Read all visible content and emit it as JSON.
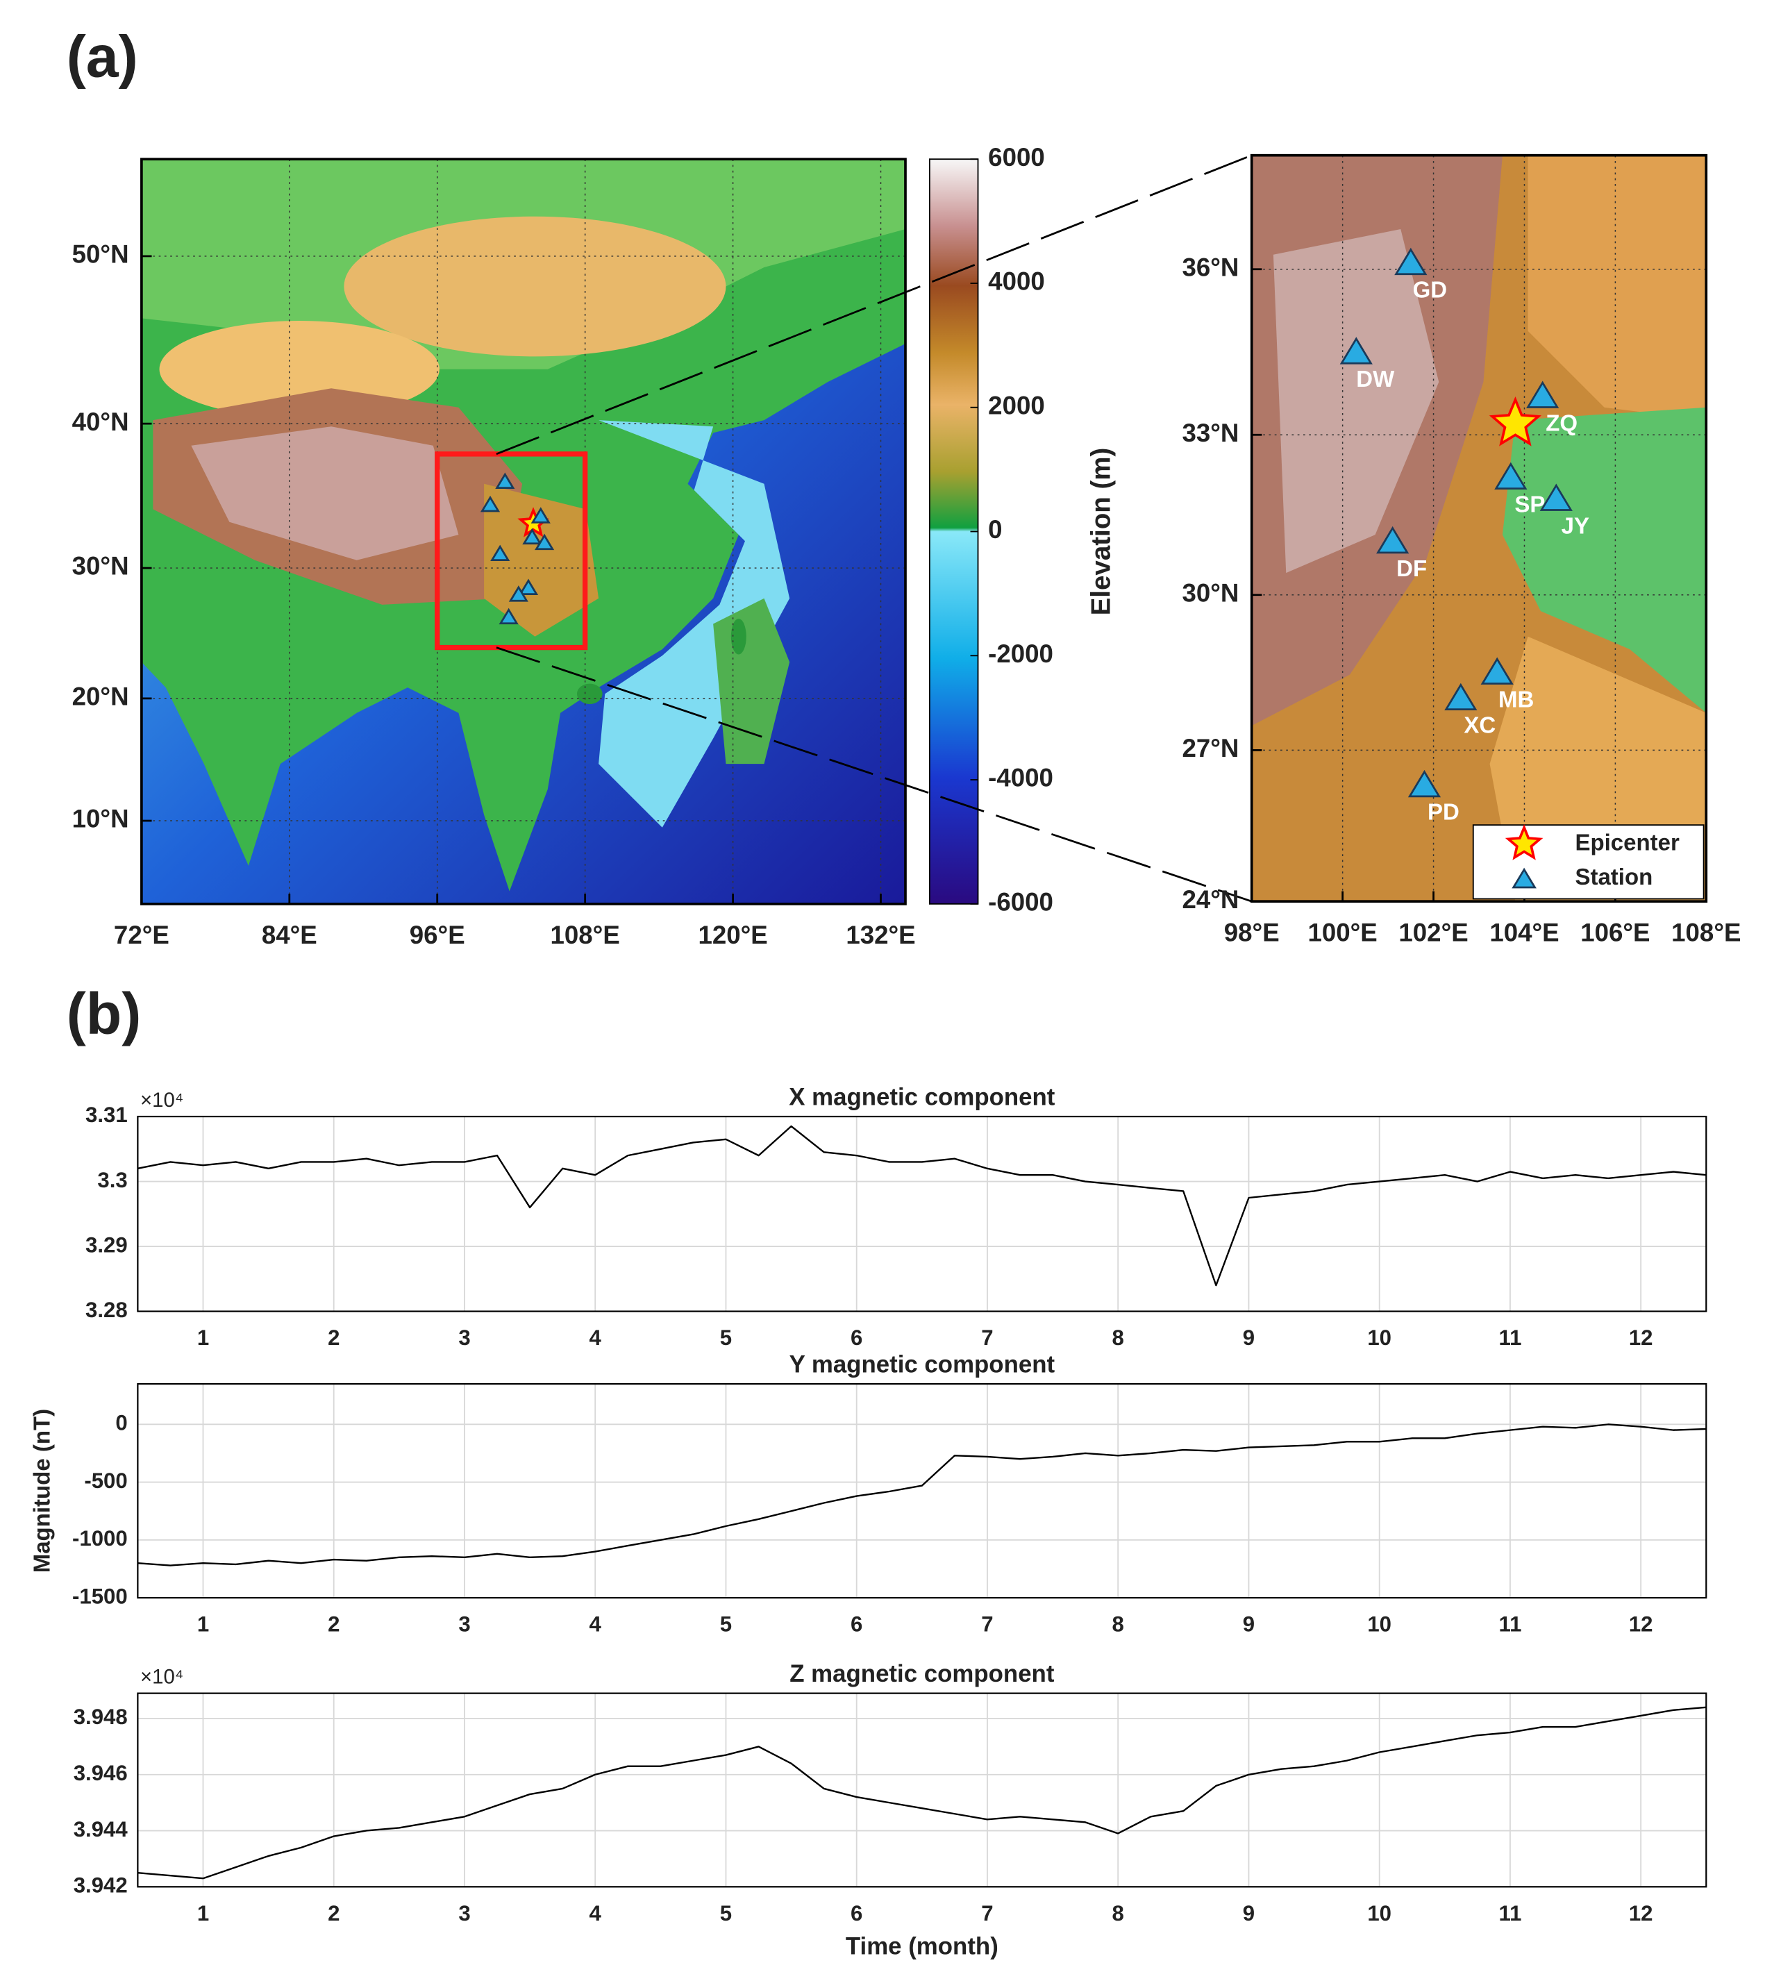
{
  "chart_data": [
    {
      "type": "map",
      "panel_label": "(a)",
      "projection": "mercator",
      "xlim": [
        72,
        134
      ],
      "ylim": [
        3,
        55
      ],
      "xticks": [
        {
          "value": 72,
          "label": "72°E"
        },
        {
          "value": 84,
          "label": "84°E"
        },
        {
          "value": 96,
          "label": "96°E"
        },
        {
          "value": 108,
          "label": "108°E"
        },
        {
          "value": 120,
          "label": "120°E"
        },
        {
          "value": 132,
          "label": "132°E"
        }
      ],
      "yticks": [
        {
          "value": 10,
          "label": "10°N"
        },
        {
          "value": 20,
          "label": "20°N"
        },
        {
          "value": 30,
          "label": "30°N"
        },
        {
          "value": 40,
          "label": "40°N"
        },
        {
          "value": 50,
          "label": "50°N"
        }
      ],
      "grid": true,
      "highlight_box": {
        "xlim": [
          96,
          108
        ],
        "ylim": [
          24,
          38
        ],
        "color": "#ff1a1a"
      },
      "colorbar": {
        "label": "Elevation (m)",
        "lim": [
          -6000,
          6000
        ],
        "ticks": [
          6000,
          4000,
          2000,
          0,
          -2000,
          -4000,
          -6000
        ]
      }
    },
    {
      "type": "map",
      "projection": "mercator",
      "xlim": [
        98,
        108
      ],
      "ylim": [
        24,
        38
      ],
      "xticks": [
        {
          "value": 98,
          "label": "98°E"
        },
        {
          "value": 100,
          "label": "100°E"
        },
        {
          "value": 102,
          "label": "102°E"
        },
        {
          "value": 104,
          "label": "104°E"
        },
        {
          "value": 106,
          "label": "106°E"
        },
        {
          "value": 108,
          "label": "108°E"
        }
      ],
      "yticks": [
        {
          "value": 24,
          "label": "24°N"
        },
        {
          "value": 27,
          "label": "27°N"
        },
        {
          "value": 30,
          "label": "30°N"
        },
        {
          "value": 33,
          "label": "33°N"
        },
        {
          "value": 36,
          "label": "36°N"
        }
      ],
      "grid": true,
      "legend": "lower right",
      "series": [
        {
          "name": "Epicenter",
          "marker": "star",
          "color": "#ffe600",
          "x": [
            103.8
          ],
          "y": [
            33.2
          ]
        },
        {
          "name": "Station",
          "marker": "triangle",
          "color": "#29abe2",
          "labels": [
            "GD",
            "DW",
            "ZQ",
            "SP",
            "JY",
            "DF",
            "MB",
            "XC",
            "PD"
          ],
          "x": [
            101.5,
            100.3,
            104.4,
            103.7,
            104.7,
            101.1,
            103.4,
            102.6,
            101.8
          ],
          "y": [
            36.1,
            34.5,
            33.7,
            32.2,
            31.8,
            31.0,
            28.5,
            28.0,
            26.3
          ]
        }
      ]
    },
    {
      "type": "line",
      "panel_label": "(b)",
      "title": "X magnetic component",
      "exponent_label": "×10⁴",
      "color": "#000000",
      "grid": true,
      "xlim": [
        0.5,
        12.5
      ],
      "xticks": [
        1,
        2,
        3,
        4,
        5,
        6,
        7,
        8,
        9,
        10,
        11,
        12
      ],
      "ylim": [
        32800,
        33100
      ],
      "yticks": [
        {
          "value": 32800,
          "label": "3.28"
        },
        {
          "value": 32900,
          "label": "3.29"
        },
        {
          "value": 33000,
          "label": "3.3"
        },
        {
          "value": 33100,
          "label": "3.31"
        }
      ],
      "x": [
        0.5,
        0.75,
        1,
        1.25,
        1.5,
        1.75,
        2,
        2.25,
        2.5,
        2.75,
        3,
        3.25,
        3.5,
        3.75,
        4,
        4.25,
        4.5,
        4.75,
        5,
        5.25,
        5.5,
        5.75,
        6,
        6.25,
        6.5,
        6.75,
        7,
        7.25,
        7.5,
        7.75,
        8,
        8.25,
        8.5,
        8.75,
        9,
        9.25,
        9.5,
        9.75,
        10,
        10.25,
        10.5,
        10.75,
        11,
        11.25,
        11.5,
        11.75,
        12,
        12.25,
        12.5
      ],
      "values": [
        33020,
        33030,
        33025,
        33030,
        33020,
        33030,
        33030,
        33035,
        33025,
        33030,
        33030,
        33040,
        32960,
        33020,
        33010,
        33040,
        33050,
        33060,
        33065,
        33040,
        33085,
        33045,
        33040,
        33030,
        33030,
        33035,
        33020,
        33010,
        33010,
        33000,
        32995,
        32990,
        32985,
        32840,
        32975,
        32980,
        32985,
        32995,
        33000,
        33005,
        33010,
        33000,
        33015,
        33005,
        33010,
        33005,
        33010,
        33015,
        33010
      ]
    },
    {
      "type": "line",
      "title": "Y magnetic component",
      "ylabel": "Magnitude (nT)",
      "color": "#000000",
      "grid": true,
      "xlim": [
        0.5,
        12.5
      ],
      "xticks": [
        1,
        2,
        3,
        4,
        5,
        6,
        7,
        8,
        9,
        10,
        11,
        12
      ],
      "ylim": [
        -1500,
        350
      ],
      "yticks": [
        -1500,
        -1000,
        -500,
        0
      ],
      "x": [
        0.5,
        0.75,
        1,
        1.25,
        1.5,
        1.75,
        2,
        2.25,
        2.5,
        2.75,
        3,
        3.25,
        3.5,
        3.75,
        4,
        4.25,
        4.5,
        4.75,
        5,
        5.25,
        5.5,
        5.75,
        6,
        6.25,
        6.5,
        6.75,
        7,
        7.25,
        7.5,
        7.75,
        8,
        8.25,
        8.5,
        8.75,
        9,
        9.25,
        9.5,
        9.75,
        10,
        10.25,
        10.5,
        10.75,
        11,
        11.25,
        11.5,
        11.75,
        12,
        12.25,
        12.5
      ],
      "values": [
        -1200,
        -1220,
        -1200,
        -1210,
        -1180,
        -1200,
        -1170,
        -1180,
        -1150,
        -1140,
        -1150,
        -1120,
        -1150,
        -1140,
        -1100,
        -1050,
        -1000,
        -950,
        -880,
        -820,
        -750,
        -680,
        -620,
        -580,
        -530,
        -270,
        -280,
        -300,
        -280,
        -250,
        -270,
        -250,
        -220,
        -230,
        -200,
        -190,
        -180,
        -150,
        -150,
        -120,
        -120,
        -80,
        -50,
        -20,
        -30,
        0,
        -20,
        -50,
        -40
      ]
    },
    {
      "type": "line",
      "title": "Z magnetic component",
      "exponent_label": "×10⁴",
      "xlabel": "Time (month)",
      "color": "#000000",
      "grid": true,
      "xlim": [
        0.5,
        12.5
      ],
      "xticks": [
        1,
        2,
        3,
        4,
        5,
        6,
        7,
        8,
        9,
        10,
        11,
        12
      ],
      "ylim": [
        39420,
        39489
      ],
      "yticks": [
        {
          "value": 39420,
          "label": "3.942"
        },
        {
          "value": 39440,
          "label": "3.944"
        },
        {
          "value": 39460,
          "label": "3.946"
        },
        {
          "value": 39480,
          "label": "3.948"
        }
      ],
      "x": [
        0.5,
        0.75,
        1,
        1.25,
        1.5,
        1.75,
        2,
        2.25,
        2.5,
        2.75,
        3,
        3.25,
        3.5,
        3.75,
        4,
        4.25,
        4.5,
        4.75,
        5,
        5.25,
        5.5,
        5.75,
        6,
        6.25,
        6.5,
        6.75,
        7,
        7.25,
        7.5,
        7.75,
        8,
        8.25,
        8.5,
        8.75,
        9,
        9.25,
        9.5,
        9.75,
        10,
        10.25,
        10.5,
        10.75,
        11,
        11.25,
        11.5,
        11.75,
        12,
        12.25,
        12.5
      ],
      "values": [
        39425,
        39424,
        39423,
        39427,
        39431,
        39434,
        39438,
        39440,
        39441,
        39443,
        39445,
        39449,
        39453,
        39455,
        39460,
        39463,
        39463,
        39465,
        39467,
        39470,
        39464,
        39455,
        39452,
        39450,
        39448,
        39446,
        39444,
        39445,
        39444,
        39443,
        39439,
        39445,
        39447,
        39456,
        39460,
        39462,
        39463,
        39465,
        39468,
        39470,
        39472,
        39474,
        39475,
        39477,
        39477,
        39479,
        39481,
        39483,
        39484
      ]
    }
  ]
}
